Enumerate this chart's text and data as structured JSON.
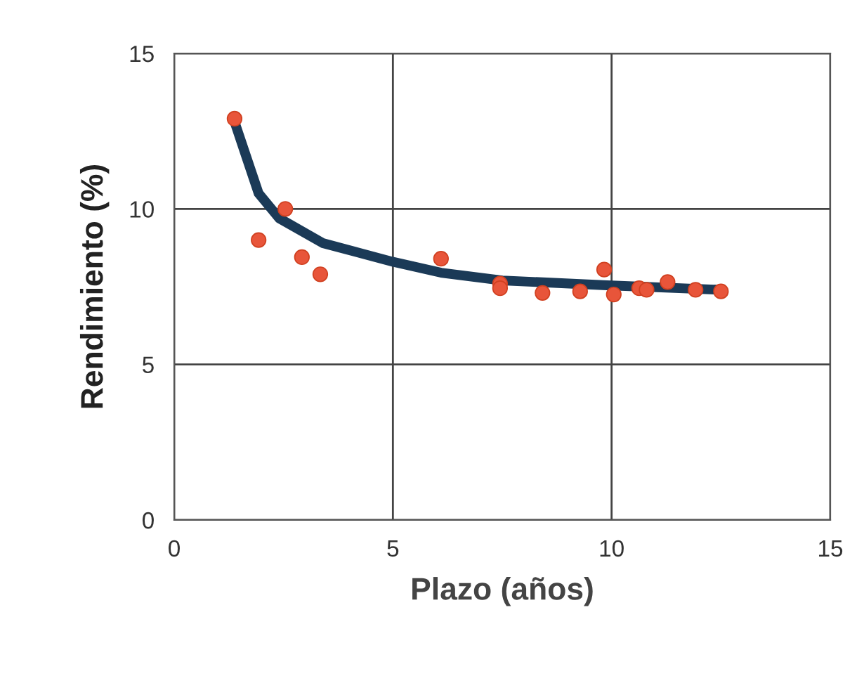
{
  "chart_data": {
    "type": "scatter",
    "xlabel": "Plazo (años)",
    "ylabel": "Rendimiento (%)",
    "xlim": [
      0,
      15
    ],
    "ylim": [
      0,
      15
    ],
    "xticks": [
      0,
      5,
      10,
      15
    ],
    "yticks": [
      0,
      5,
      10,
      15
    ],
    "grid": true,
    "series": [
      {
        "color": "#e8553a",
        "marker": "circle",
        "x": [
          1.38,
          1.93,
          2.54,
          2.92,
          3.34,
          6.1,
          7.45,
          7.45,
          8.42,
          9.28,
          9.83,
          10.05,
          10.63,
          10.8,
          11.28,
          11.92,
          12.5
        ],
        "values": [
          12.9,
          9.0,
          10.0,
          8.45,
          7.9,
          8.4,
          7.6,
          7.45,
          7.3,
          7.35,
          8.05,
          7.25,
          7.45,
          7.4,
          7.65,
          7.4,
          7.35
        ]
      },
      {
        "type": "line",
        "color": "#1b3a57",
        "marker": "none",
        "x": [
          1.38,
          1.93,
          2.4,
          3.4,
          5,
          6.1,
          7.5,
          9.8,
          12.5
        ],
        "values": [
          12.8,
          10.5,
          9.7,
          8.9,
          8.3,
          7.95,
          7.7,
          7.55,
          7.4
        ]
      }
    ]
  }
}
